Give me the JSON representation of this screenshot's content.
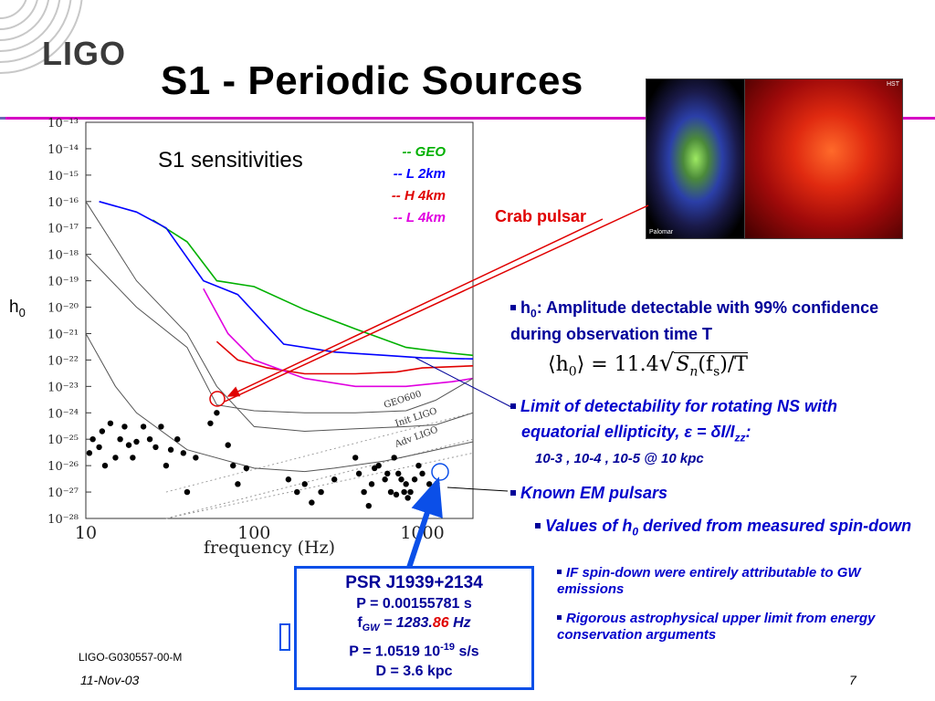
{
  "header": {
    "logo": "LIGO",
    "title": "S1 - Periodic Sources"
  },
  "chart": {
    "title": "S1 sensitivities",
    "ylabel": "h0",
    "xlabel": "frequency (Hz)",
    "y_ticks": [
      "10⁻¹³",
      "10⁻¹⁴",
      "10⁻¹⁵",
      "10⁻¹⁶",
      "10⁻¹⁷",
      "10⁻¹⁸",
      "10⁻¹⁹",
      "10⁻²⁰",
      "10⁻²¹",
      "10⁻²²",
      "10⁻²³",
      "10⁻²⁴",
      "10⁻²⁵",
      "10⁻²⁶",
      "10⁻²⁷",
      "10⁻²⁸"
    ],
    "x_ticks": [
      "10",
      "100",
      "1000"
    ],
    "legend": [
      {
        "label": "-- GEO",
        "color": "#00b000"
      },
      {
        "label": "-- L 2km",
        "color": "#0000ff"
      },
      {
        "label": "-- H 4km",
        "color": "#e00000"
      },
      {
        "label": "-- L 4km",
        "color": "#e000e0"
      }
    ],
    "curve_labels": [
      "GEO600",
      "Init LIGO",
      "Adv LIGO"
    ]
  },
  "chart_data": {
    "type": "line",
    "title": "S1 sensitivities",
    "xlabel": "frequency (Hz)",
    "ylabel": "h0",
    "x_scale": "log",
    "y_scale": "log",
    "xlim": [
      10,
      2000
    ],
    "ylim": [
      1e-28,
      1e-13
    ],
    "series": [
      {
        "name": "-- GEO",
        "color": "#00b000",
        "x": [
          25,
          40,
          60,
          100,
          200,
          400,
          800,
          1500,
          2000
        ],
        "y": [
          2e-17,
          3e-18,
          1e-19,
          6e-20,
          8e-21,
          1.5e-21,
          3e-22,
          1.8e-22,
          1.5e-22
        ]
      },
      {
        "name": "-- L 2km",
        "color": "#0000ff",
        "x": [
          12,
          20,
          30,
          50,
          80,
          150,
          300,
          600,
          1000,
          2000
        ],
        "y": [
          1e-16,
          4e-17,
          1e-17,
          1e-19,
          3e-20,
          4e-22,
          2e-22,
          1.5e-22,
          1.2e-22,
          1.1e-22
        ]
      },
      {
        "name": "-- H 4km",
        "color": "#e00000",
        "x": [
          60,
          80,
          120,
          200,
          400,
          700,
          1000,
          2000
        ],
        "y": [
          5e-22,
          1e-22,
          5e-23,
          3e-23,
          3e-23,
          3.5e-23,
          5e-23,
          6e-23
        ]
      },
      {
        "name": "-- L 4km",
        "color": "#e000e0",
        "x": [
          50,
          70,
          100,
          200,
          400,
          800,
          1500,
          2000
        ],
        "y": [
          5e-20,
          1e-21,
          1e-22,
          2e-23,
          1e-23,
          1e-23,
          1.5e-23,
          2e-23
        ]
      },
      {
        "name": "GEO600",
        "color": "#555555",
        "x": [
          10,
          20,
          40,
          60,
          100,
          200,
          400,
          800,
          1200,
          2000
        ],
        "y": [
          1e-18,
          1e-20,
          3e-22,
          2e-24,
          1.2e-24,
          1e-24,
          1e-24,
          1.2e-24,
          3e-24,
          2e-23
        ]
      },
      {
        "name": "Init LIGO",
        "color": "#555555",
        "x": [
          10,
          20,
          40,
          60,
          100,
          200,
          400,
          800,
          1200,
          2000
        ],
        "y": [
          1e-16,
          1e-19,
          1e-21,
          1e-23,
          3e-25,
          2e-25,
          2.5e-25,
          3e-25,
          3.5e-25,
          1e-24
        ]
      },
      {
        "name": "Adv LIGO",
        "color": "#555555",
        "x": [
          10,
          15,
          20,
          40,
          100,
          200,
          300,
          600,
          1000,
          2000
        ],
        "y": [
          1e-21,
          1e-23,
          1e-24,
          4e-26,
          8e-27,
          6e-27,
          8e-27,
          1.5e-26,
          3e-26,
          8e-26
        ]
      }
    ],
    "annotations": [
      {
        "text": "Crab pulsar",
        "x": 60,
        "y": 1e-24
      },
      {
        "text": "PSR J1939+2134",
        "x": 1283.86,
        "y": 1e-27
      }
    ],
    "pulsars": {
      "x": [
        10.5,
        11,
        12,
        12.5,
        13,
        14,
        15,
        16,
        17,
        18,
        19,
        20,
        22,
        24,
        26,
        28,
        30,
        32,
        35,
        38,
        40,
        45,
        55,
        60,
        70,
        75,
        80,
        90,
        160,
        180,
        200,
        220,
        250,
        300,
        400,
        420,
        450,
        480,
        500,
        520,
        550,
        600,
        620,
        650,
        680,
        700,
        720,
        750,
        780,
        800,
        820,
        850,
        900,
        950,
        1000,
        1100,
        1200
      ],
      "y": [
        3e-26,
        1e-25,
        5e-26,
        2e-25,
        1e-26,
        4e-25,
        2e-26,
        1e-25,
        3e-25,
        6e-26,
        2e-26,
        8e-26,
        3e-25,
        1e-25,
        5e-26,
        3e-25,
        1e-26,
        4e-26,
        1e-25,
        3e-26,
        1e-27,
        2e-26,
        4e-25,
        1e-24,
        6e-26,
        1e-26,
        2e-27,
        8e-27,
        3e-27,
        1e-27,
        2e-27,
        4e-28,
        1e-27,
        3e-27,
        2e-26,
        5e-27,
        1e-27,
        3e-28,
        2e-27,
        8e-27,
        1e-26,
        3e-27,
        5e-27,
        1e-27,
        2e-26,
        8e-28,
        5e-27,
        3e-27,
        1e-27,
        2e-27,
        6e-28,
        1e-27,
        3e-27,
        1e-26,
        5e-27,
        2e-27,
        1e-27
      ]
    }
  },
  "images": {
    "label_left": "Palomar",
    "label_right": "HST",
    "crab_label": "Crab pulsar"
  },
  "bullets": {
    "b1_h": "h",
    "b1_sub": "0",
    "b1_rest": ": Amplitude detectable with 99% confidence during observation time T",
    "formula_lhs": "⟨h",
    "formula_lhs_sub": "0",
    "formula_mid": "⟩ = 11.4",
    "formula_rad": "S",
    "formula_rad_sub": "n",
    "formula_rad_rest": "(f",
    "formula_rad_sub2": "s",
    "formula_rad_end": ")/T",
    "b2_line1": "Limit of detectability for rotating NS with",
    "b2_line2a": "equatorial ellipticity, ",
    "b2_eps": "ε",
    "b2_line2b": " = δI/I",
    "b2_sub": "zz",
    "b2_line2c": ":",
    "b2_values": "10-3 , 10-4 , 10-5 @ 10 kpc",
    "b3": "Known EM pulsars",
    "b4_pre": "Values of h",
    "b4_sub": "0",
    "b4_post": " derived from measured spin-down",
    "b5": "IF spin-down were entirely attributable to GW emissions",
    "b6": "Rigorous astrophysical upper limit from energy conservation arguments"
  },
  "psr_box": {
    "name": "PSR J1939+2134",
    "period": "P = 0.00155781 s",
    "fgw_pre": "f",
    "fgw_sub": "GW",
    "fgw_eq": " = 1283.",
    "fgw_red": "86",
    "fgw_unit": " Hz",
    "pdot": "P = 1.0519 10",
    "pdot_exp": "-19",
    "pdot_unit": " s/s",
    "distance": "D = 3.6 kpc"
  },
  "footer": {
    "doc_id": "LIGO-G030557-00-M",
    "date": "11-Nov-03",
    "page": "7"
  }
}
